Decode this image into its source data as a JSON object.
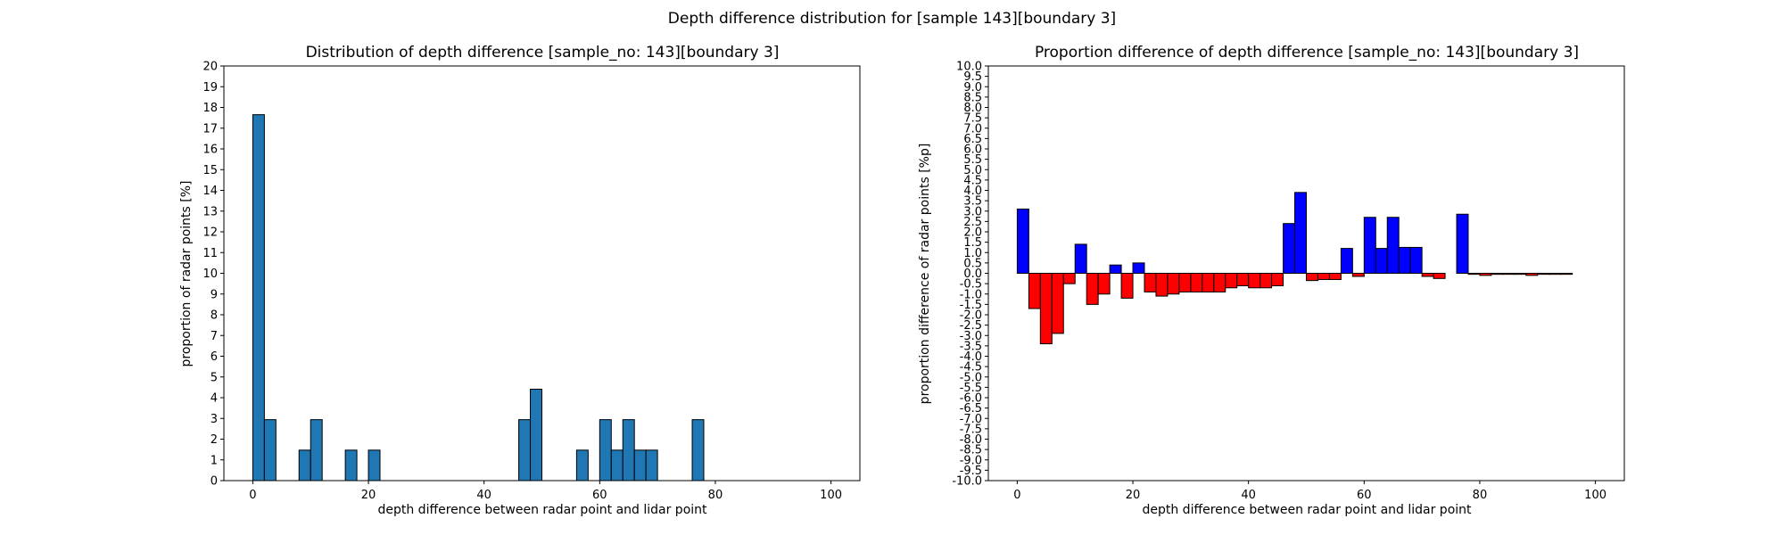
{
  "suptitle": "Depth difference distribution for [sample 143][boundary 3]",
  "chart_data": [
    {
      "type": "bar",
      "title": "Distribution of depth difference [sample_no: 143][boundary 3]",
      "xlabel": "depth difference between radar point and lidar point",
      "ylabel": "proportion of radar points [%]",
      "xlim": [
        -5,
        105
      ],
      "ylim": [
        0,
        20
      ],
      "xticks": [
        0,
        20,
        40,
        60,
        80,
        100
      ],
      "yticks": [
        0,
        1,
        2,
        3,
        4,
        5,
        6,
        7,
        8,
        9,
        10,
        11,
        12,
        13,
        14,
        15,
        16,
        17,
        18,
        19,
        20
      ],
      "bin_width": 2,
      "bar_color": "#1f77b4",
      "edge_color": "#000000",
      "bins": [
        0,
        2,
        4,
        6,
        8,
        10,
        12,
        14,
        16,
        18,
        20,
        22,
        24,
        26,
        28,
        30,
        32,
        34,
        36,
        38,
        40,
        42,
        44,
        46,
        48,
        50,
        52,
        54,
        56,
        58,
        60,
        62,
        64,
        66,
        68,
        70,
        72,
        74,
        76,
        78,
        80,
        82,
        84,
        86,
        88,
        90,
        92,
        94,
        96,
        98
      ],
      "values": [
        17.65,
        2.94,
        0,
        0,
        1.47,
        2.94,
        0,
        0,
        1.47,
        0,
        1.47,
        0,
        0,
        0,
        0,
        0,
        0,
        0,
        0,
        0,
        0,
        0,
        0,
        2.94,
        4.41,
        0,
        0,
        0,
        1.47,
        0,
        2.94,
        1.47,
        2.94,
        1.47,
        1.47,
        0,
        0,
        0,
        2.94,
        0,
        0,
        0,
        0,
        0,
        0,
        0,
        0,
        0,
        0,
        0
      ]
    },
    {
      "type": "bar",
      "title": "Proportion difference of depth difference [sample_no: 143][boundary 3]",
      "xlabel": "depth difference between radar point and lidar point",
      "ylabel": "proportion difference of radar points [%p]",
      "xlim": [
        -5,
        105
      ],
      "ylim": [
        -10,
        10
      ],
      "xticks": [
        0,
        20,
        40,
        60,
        80,
        100
      ],
      "yticks": [
        -10.0,
        -9.5,
        -9.0,
        -8.5,
        -8.0,
        -7.5,
        -7.0,
        -6.5,
        -6.0,
        -5.5,
        -5.0,
        -4.5,
        -4.0,
        -3.5,
        -3.0,
        -2.5,
        -2.0,
        -1.5,
        -1.0,
        -0.5,
        0.0,
        0.5,
        1.0,
        1.5,
        2.0,
        2.5,
        3.0,
        3.5,
        4.0,
        4.5,
        5.0,
        5.5,
        6.0,
        6.5,
        7.0,
        7.5,
        8.0,
        8.5,
        9.0,
        9.5,
        10.0
      ],
      "bin_width": 2,
      "positive_color": "#0000ff",
      "negative_color": "#ff0000",
      "edge_color": "#000000",
      "bins": [
        0,
        2,
        4,
        6,
        8,
        10,
        12,
        14,
        16,
        18,
        20,
        22,
        24,
        26,
        28,
        30,
        32,
        34,
        36,
        38,
        40,
        42,
        44,
        46,
        48,
        50,
        52,
        54,
        56,
        58,
        60,
        62,
        64,
        66,
        68,
        70,
        72,
        74,
        76,
        78,
        80,
        82,
        84,
        86,
        88,
        90,
        92,
        94,
        96,
        98
      ],
      "values": [
        3.1,
        -1.7,
        -3.4,
        -2.9,
        -0.5,
        1.4,
        -1.5,
        -1.0,
        0.4,
        -1.2,
        0.5,
        -0.9,
        -1.1,
        -1.0,
        -0.9,
        -0.9,
        -0.9,
        -0.9,
        -0.7,
        -0.6,
        -0.7,
        -0.7,
        -0.6,
        2.4,
        3.9,
        -0.35,
        -0.3,
        -0.3,
        1.2,
        -0.15,
        2.7,
        1.2,
        2.7,
        1.25,
        1.25,
        -0.15,
        -0.25,
        0,
        2.85,
        -0.05,
        -0.1,
        -0.05,
        -0.05,
        -0.05,
        -0.1,
        -0.05,
        -0.05,
        -0.05,
        0,
        0
      ]
    }
  ]
}
